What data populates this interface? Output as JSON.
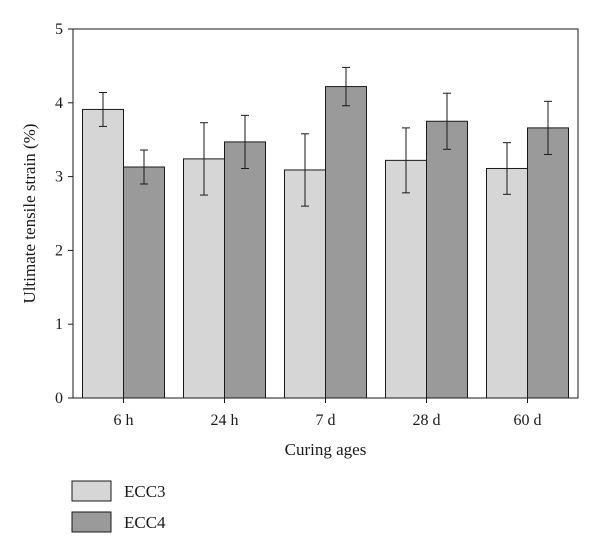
{
  "chart_data": {
    "type": "bar",
    "title": "",
    "xlabel": "Curing ages",
    "ylabel": "Ultimate tensile strain (%)",
    "ylim": [
      0,
      5
    ],
    "yticks": [
      0,
      1,
      2,
      3,
      4,
      5
    ],
    "grid": false,
    "legend_position": "bottom-left",
    "categories": [
      "6 h",
      "24 h",
      "7 d",
      "28 d",
      "60 d"
    ],
    "series": [
      {
        "name": "ECC3",
        "color": "#d6d6d6",
        "values": [
          3.91,
          3.24,
          3.09,
          3.22,
          3.11
        ],
        "error": [
          0.23,
          0.49,
          0.49,
          0.44,
          0.35
        ]
      },
      {
        "name": "ECC4",
        "color": "#9a9a9a",
        "values": [
          3.13,
          3.47,
          4.22,
          3.75,
          3.66
        ],
        "error": [
          0.23,
          0.36,
          0.26,
          0.38,
          0.36
        ]
      }
    ]
  }
}
